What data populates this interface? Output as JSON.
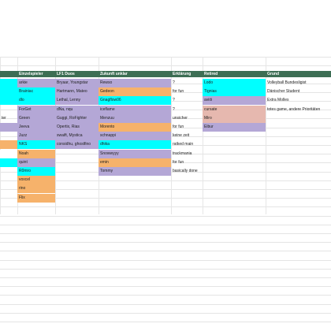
{
  "colors": {
    "header_bg": "#3d6e54",
    "header_text": "#ffffff",
    "purple": "#b4a7d6",
    "cyan": "#00ffff",
    "orange": "#f6b26b",
    "pink": "#e6b8af",
    "white": "#ffffff",
    "grid": "#e4e4e4"
  },
  "headers": {
    "c1": "Einzelspieler",
    "c2": "LF1 Duos",
    "c3": "Zukunft unklar",
    "c4": "Erklärung",
    "c5": "Retired",
    "c6": "Grund"
  },
  "col0": {
    "r5": "ter"
  },
  "rows": [
    {
      "c1": "arkie",
      "c2": "Bryaar, Youngstar",
      "c3": "Rewso",
      "c4": "?",
      "c5": "Lodo",
      "c6": "Volleyball Bundesligist"
    },
    {
      "c1": "Brainiac",
      "c2": "Hartmann, Mateo",
      "c3": "Gedeon",
      "c4": "for fun",
      "c5": "Tignias",
      "c6": "Dänischer Student"
    },
    {
      "c1": "dlo",
      "c2": "Lethal, Lenny",
      "c3": "Gnagflow06",
      "c4": "?",
      "c5": "aviöi",
      "c6": "Extra Molles"
    },
    {
      "c1": "ForGet",
      "c2": "dNa, nqu",
      "c3": "iceflame",
      "c4": "?",
      "c5": "cursate",
      "c6": "totes game, andere Prioritäten"
    },
    {
      "c1": "Green",
      "c2": "Guggi, RoFighter",
      "c3": "Menzuu",
      "c4": "unsicher",
      "c5": "Miro",
      "c6": ""
    },
    {
      "c1": "Jeeva",
      "c2": "Opertix, Rias",
      "c3": "Morento",
      "c4": "for fun",
      "c5": "Eibur",
      "c6": ""
    },
    {
      "c1": "Juzz",
      "c2": "swaift, Mystica",
      "c3": "schnappi",
      "c4": "keine zeit",
      "c5": "",
      "c6": ""
    },
    {
      "c1": "NKS",
      "c2": "considhu, ghostfino",
      "c3": "dhika",
      "c4": "ratked main",
      "c5": "",
      "c6": ""
    },
    {
      "c1": "Noah",
      "c2": "",
      "c3": "Snowwyyy",
      "c4": "trackmania",
      "c5": "",
      "c6": ""
    },
    {
      "c1": "quint",
      "c2": "",
      "c3": "emin",
      "c4": "for fun",
      "c5": "",
      "c6": ""
    },
    {
      "c1": "R0mro",
      "c2": "",
      "c3": "Tommy",
      "c4": "basically done",
      "c5": "",
      "c6": ""
    },
    {
      "c1": "voxcel",
      "c2": "",
      "c3": "",
      "c4": "",
      "c5": "",
      "c6": ""
    },
    {
      "c1": "rino",
      "c2": "",
      "c3": "",
      "c4": "",
      "c5": "",
      "c6": ""
    },
    {
      "c1": "Flix",
      "c2": "",
      "c3": "",
      "c4": "",
      "c5": "",
      "c6": ""
    }
  ]
}
